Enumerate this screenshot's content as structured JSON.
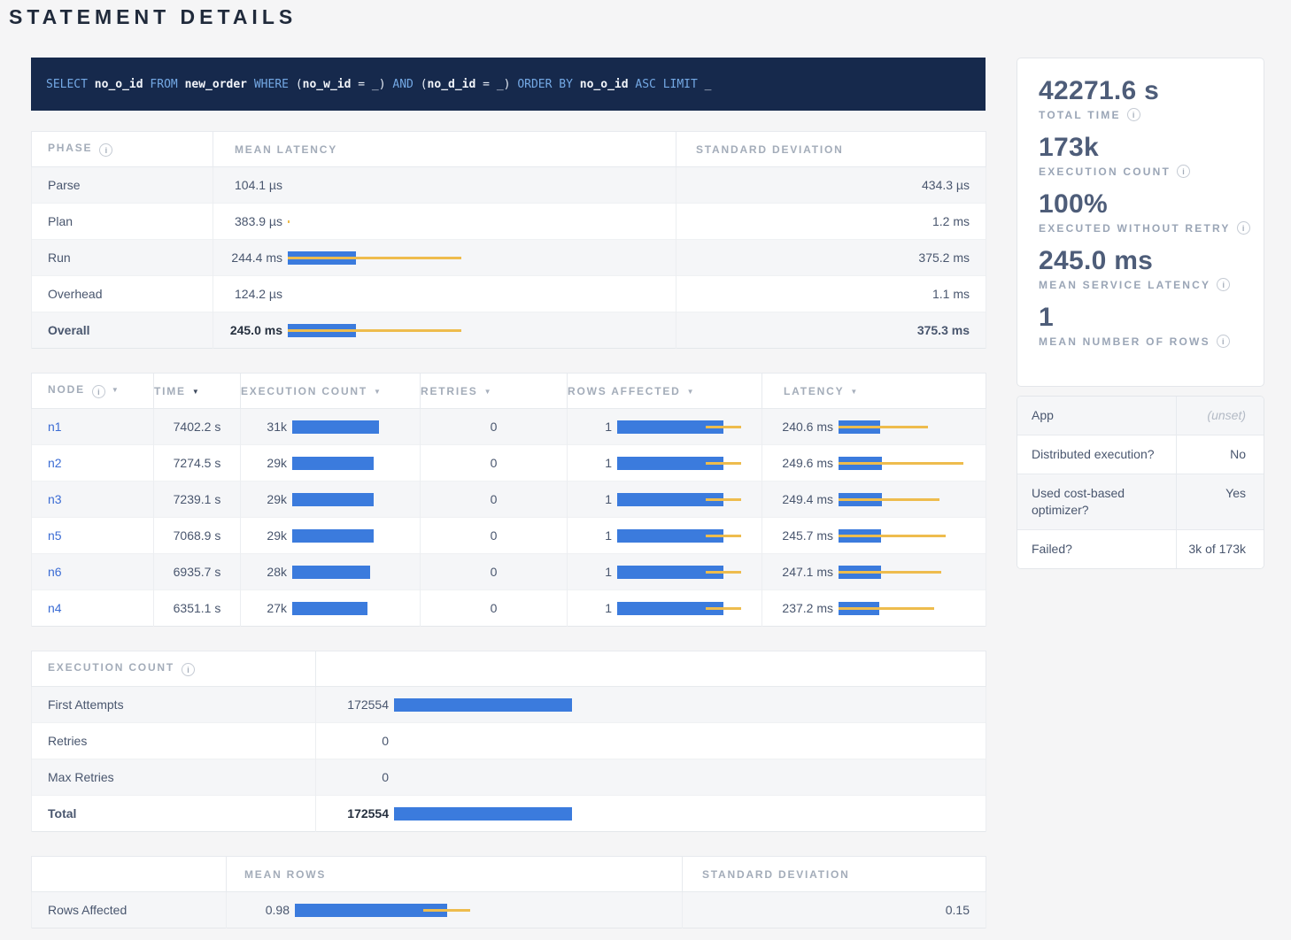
{
  "title": "STATEMENT DETAILS",
  "colors": {
    "page_bg": "#f5f5f6",
    "bar_blue": "#3b7bdd",
    "bar_yellow": "#eebc4d",
    "link_blue": "#3b6cd4",
    "sql_bg": "#16294c",
    "sql_keyword": "#74a9e5",
    "sql_text": "#f2f5fa"
  },
  "sql": {
    "statement": "SELECT no_o_id FROM new_order WHERE (no_w_id = _) AND (no_d_id = _) ORDER BY no_o_id ASC LIMIT _",
    "tokens": [
      {
        "c": "kw",
        "t": "SELECT "
      },
      {
        "c": "id",
        "t": "no_o_id"
      },
      {
        "c": "kw",
        "t": " FROM "
      },
      {
        "c": "id",
        "t": "new_order"
      },
      {
        "c": "kw",
        "t": " WHERE "
      },
      {
        "c": "pl",
        "t": "("
      },
      {
        "c": "id",
        "t": "no_w_id"
      },
      {
        "c": "pl",
        "t": " = _) "
      },
      {
        "c": "kw",
        "t": "AND "
      },
      {
        "c": "pl",
        "t": "("
      },
      {
        "c": "id",
        "t": "no_d_id"
      },
      {
        "c": "pl",
        "t": " = _) "
      },
      {
        "c": "kw",
        "t": "ORDER BY "
      },
      {
        "c": "id",
        "t": "no_o_id"
      },
      {
        "c": "kw",
        "t": " ASC LIMIT "
      },
      {
        "c": "pl",
        "t": "_"
      }
    ]
  },
  "phase_table": {
    "headers": [
      "PHASE",
      "MEAN LATENCY",
      "STANDARD DEVIATION"
    ],
    "rows": [
      {
        "phase": "Parse",
        "mean_label": "104.1 µs",
        "mean_ms": 0.1041,
        "sd_label": "434.3 µs",
        "sd_ms": 0.4343,
        "emphasis": false
      },
      {
        "phase": "Plan",
        "mean_label": "383.9 µs",
        "mean_ms": 0.3839,
        "sd_label": "1.2 ms",
        "sd_ms": 1.2,
        "emphasis": false
      },
      {
        "phase": "Run",
        "mean_label": "244.4 ms",
        "mean_ms": 244.4,
        "sd_label": "375.2 ms",
        "sd_ms": 375.2,
        "emphasis": false
      },
      {
        "phase": "Overhead",
        "mean_label": "124.2 µs",
        "mean_ms": 0.1242,
        "sd_label": "1.1 ms",
        "sd_ms": 1.1,
        "emphasis": false
      },
      {
        "phase": "Overall",
        "mean_label": "245.0 ms",
        "mean_ms": 245.0,
        "sd_label": "375.3 ms",
        "sd_ms": 375.3,
        "emphasis": true
      }
    ]
  },
  "node_table": {
    "headers": [
      {
        "label": "NODE",
        "info": true,
        "sort": true,
        "active": false
      },
      {
        "label": "TIME",
        "info": false,
        "sort": true,
        "active": true
      },
      {
        "label": "EXECUTION COUNT",
        "info": false,
        "sort": true,
        "active": false
      },
      {
        "label": "RETRIES",
        "info": false,
        "sort": true,
        "active": false
      },
      {
        "label": "ROWS AFFECTED",
        "info": false,
        "sort": true,
        "active": false
      },
      {
        "label": "LATENCY",
        "info": false,
        "sort": true,
        "active": false
      }
    ],
    "rows": [
      {
        "node": "n1",
        "time": "7402.2 s",
        "exec_label": "31k",
        "exec_k": 31,
        "retries": "0",
        "rows_label": "1",
        "rows_mean": 1,
        "rows_sd": 0.17,
        "latency_label": "240.6 ms",
        "latency_ms": 240.6,
        "latency_sd_ms": 277
      },
      {
        "node": "n2",
        "time": "7274.5 s",
        "exec_label": "29k",
        "exec_k": 29,
        "retries": "0",
        "rows_label": "1",
        "rows_mean": 1,
        "rows_sd": 0.17,
        "latency_label": "249.6 ms",
        "latency_ms": 249.6,
        "latency_sd_ms": 473
      },
      {
        "node": "n3",
        "time": "7239.1 s",
        "exec_label": "29k",
        "exec_k": 29,
        "retries": "0",
        "rows_label": "1",
        "rows_mean": 1,
        "rows_sd": 0.17,
        "latency_label": "249.4 ms",
        "latency_ms": 249.4,
        "latency_sd_ms": 335
      },
      {
        "node": "n5",
        "time": "7068.9 s",
        "exec_label": "29k",
        "exec_k": 29,
        "retries": "0",
        "rows_label": "1",
        "rows_mean": 1,
        "rows_sd": 0.17,
        "latency_label": "245.7 ms",
        "latency_ms": 245.7,
        "latency_sd_ms": 374
      },
      {
        "node": "n6",
        "time": "6935.7 s",
        "exec_label": "28k",
        "exec_k": 28,
        "retries": "0",
        "rows_label": "1",
        "rows_mean": 1,
        "rows_sd": 0.17,
        "latency_label": "247.1 ms",
        "latency_ms": 247.1,
        "latency_sd_ms": 348
      },
      {
        "node": "n4",
        "time": "6351.1 s",
        "exec_label": "27k",
        "exec_k": 27,
        "retries": "0",
        "rows_label": "1",
        "rows_mean": 1,
        "rows_sd": 0.17,
        "latency_label": "237.2 ms",
        "latency_ms": 237.2,
        "latency_sd_ms": 317
      }
    ]
  },
  "execution_count_table": {
    "title": "EXECUTION COUNT",
    "rows": [
      {
        "label": "First Attempts",
        "value_label": "172554",
        "value": 172554,
        "emphasis": false
      },
      {
        "label": "Retries",
        "value_label": "0",
        "value": 0,
        "emphasis": false
      },
      {
        "label": "Max Retries",
        "value_label": "0",
        "value": 0,
        "emphasis": false
      },
      {
        "label": "Total",
        "value_label": "172554",
        "value": 172554,
        "emphasis": true
      }
    ]
  },
  "rows_affected_table": {
    "headers": [
      "",
      "MEAN ROWS",
      "STANDARD DEVIATION"
    ],
    "rows": [
      {
        "label": "Rows Affected",
        "mean_label": "0.98",
        "mean": 0.98,
        "sd_label": "0.15",
        "sd": 0.15
      }
    ]
  },
  "summary_stats": [
    {
      "value": "42271.6 s",
      "label": "TOTAL TIME"
    },
    {
      "value": "173k",
      "label": "EXECUTION COUNT"
    },
    {
      "value": "100%",
      "label": "EXECUTED WITHOUT RETRY"
    },
    {
      "value": "245.0 ms",
      "label": "MEAN SERVICE LATENCY"
    },
    {
      "value": "1",
      "label": "MEAN NUMBER OF ROWS"
    }
  ],
  "statement_details": [
    {
      "label": "App",
      "value": "(unset)",
      "muted": true
    },
    {
      "label": "Distributed execution?",
      "value": "No",
      "muted": false
    },
    {
      "label": "Used cost-based optimizer?",
      "value": "Yes",
      "muted": false
    },
    {
      "label": "Failed?",
      "value": "3k of 173k",
      "muted": false
    }
  ]
}
